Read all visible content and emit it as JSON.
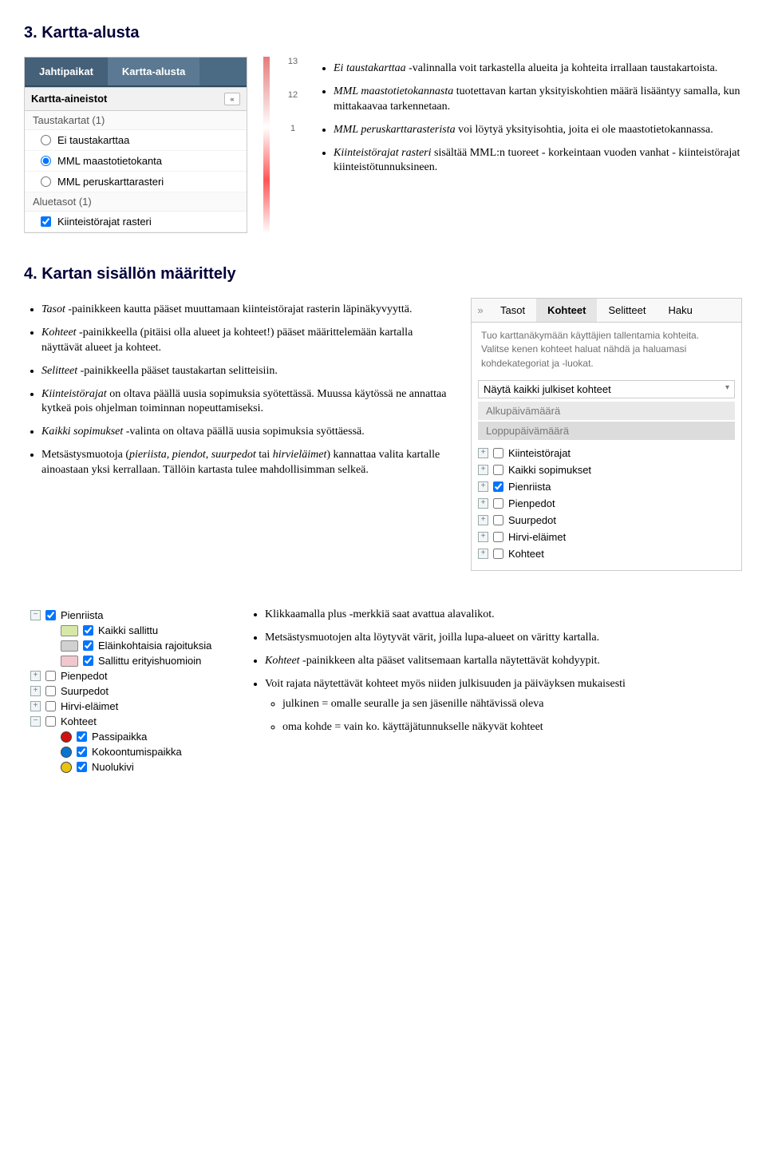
{
  "heading1": "3. Kartta-alusta",
  "panel1": {
    "tab_active": "Jahtipaikat",
    "tab_other": "Kartta-alusta",
    "section1_title": "Kartta-aineistot",
    "group1_title": "Taustakartat (1)",
    "radios": [
      "Ei taustakarttaa",
      "MML maastotietokanta",
      "MML peruskarttarasteri"
    ],
    "group2_title": "Aluetasot (1)",
    "check1": "Kiinteistörajat rasteri",
    "mapnums": [
      "13",
      "12",
      "1"
    ]
  },
  "list1": [
    "<span class='italic'>Ei taustakarttaa</span> -valinnalla voit tarkastella alueita ja kohteita irrallaan taustakartoista.",
    "<span class='italic'>MML maastotietokannasta</span> tuotettavan kartan yksityiskohtien määrä lisääntyy samalla, kun mittakaavaa tarkennetaan.",
    "<span class='italic'>MML peruskarttarasterista</span> voi löytyä yksityisohtia, joita ei ole maastotietokannassa.",
    "<span class='italic'>Kiinteistörajat rasteri</span> sisältää MML:n tuoreet - korkeintaan vuoden vanhat - kiinteistörajat kiinteistötunnuksineen."
  ],
  "heading2": "4. Kartan sisällön määrittely",
  "list2": [
    "<span class='italic'>Tasot</span> -painikkeen kautta pääset muuttamaan kiinteistörajat rasterin läpinäkyvyyttä.",
    "<span class='italic'>Kohteet</span> -painikkeella (pitäisi olla alueet ja kohteet!) pääset määrittelemään kartalla näyttävät alueet ja kohteet.",
    "<span class='italic'>Selitteet</span> -painikkeella pääset taustakartan selitteisiin.",
    "<span class='italic'>Kiinteistörajat</span> on oltava päällä uusia sopimuksia syötettässä. Muussa käytössä ne annattaa kytkeä pois ohjelman toiminnan nopeuttamiseksi.",
    "<span class='italic'>Kaikki sopimukset</span> -valinta on oltava päällä uusia sopimuksia syöttäessä.",
    "Metsästysmuotoja (<span class='italic'>pieriista, piendot, suurpedot</span> tai <span class='italic'>hirvieläimet</span>) kannattaa valita kartalle ainoastaan yksi kerrallaan. Tällöin kartasta tulee mahdollisimman selkeä."
  ],
  "panel2": {
    "tabs": [
      "Tasot",
      "Kohteet",
      "Selitteet",
      "Haku"
    ],
    "active_index": 1,
    "help_line1": "Tuo karttanäkymään käyttäjien tallentamia kohteita.",
    "help_line2": "Valitse kenen kohteet haluat nähdä ja haluamasi kohdekategoriat ja -luokat.",
    "select_value": "Näytä kaikki julkiset kohteet",
    "gray1": "Alkupäivämäärä",
    "gray2": "Loppupäivämäärä",
    "tree": [
      {
        "label": "Kiinteistörajat",
        "checked": false
      },
      {
        "label": "Kaikki sopimukset",
        "checked": false
      },
      {
        "label": "Pienriista",
        "checked": true
      },
      {
        "label": "Pienpedot",
        "checked": false
      },
      {
        "label": "Suurpedot",
        "checked": false
      },
      {
        "label": "Hirvi-eläimet",
        "checked": false
      },
      {
        "label": "Kohteet",
        "checked": false
      }
    ]
  },
  "panel3": {
    "items": [
      {
        "type": "group",
        "expand": "minus",
        "checked": true,
        "label": "Pienriista"
      },
      {
        "type": "swatch",
        "color": "#d7e8a6",
        "checked": true,
        "label": "Kaikki sallittu"
      },
      {
        "type": "swatch",
        "color": "#d0d0d0",
        "checked": true,
        "label": "Eläinkohtaisia rajoituksia"
      },
      {
        "type": "swatch",
        "color": "#f2c6cd",
        "checked": true,
        "label": "Sallittu erityishuomioin"
      },
      {
        "type": "group",
        "expand": "plus",
        "checked": false,
        "label": "Pienpedot"
      },
      {
        "type": "group",
        "expand": "plus",
        "checked": false,
        "label": "Suurpedot"
      },
      {
        "type": "group",
        "expand": "plus",
        "checked": false,
        "label": "Hirvi-eläimet"
      },
      {
        "type": "group",
        "expand": "minus",
        "checked": false,
        "label": "Kohteet"
      },
      {
        "type": "dot",
        "color": "#d11010",
        "checked": true,
        "label": "Passipaikka"
      },
      {
        "type": "dot",
        "color": "#0b74d1",
        "checked": true,
        "label": "Kokoontumispaikka"
      },
      {
        "type": "dot",
        "color": "#e6c410",
        "checked": true,
        "label": "Nuolukivi"
      }
    ]
  },
  "list3": {
    "b1": "Klikkaamalla plus -merkkiä saat avattua alavalikot.",
    "b2": "Metsästysmuotojen alta löytyvät värit, joilla lupa-alueet on väritty kartalla.",
    "b3": "<span class='italic'>Kohteet</span> -painikkeen alta pääset valitsemaan kartalla näytettävät kohdyypit.",
    "b4": "Voit rajata näytettävät kohteet myös niiden julkisuuden ja päiväyksen mukaisesti",
    "s1": "julkinen = omalle seuralle ja sen jäsenille nähtävissä oleva",
    "s2": "oma kohde = vain ko. käyttäjätunnukselle näkyvät kohteet"
  }
}
